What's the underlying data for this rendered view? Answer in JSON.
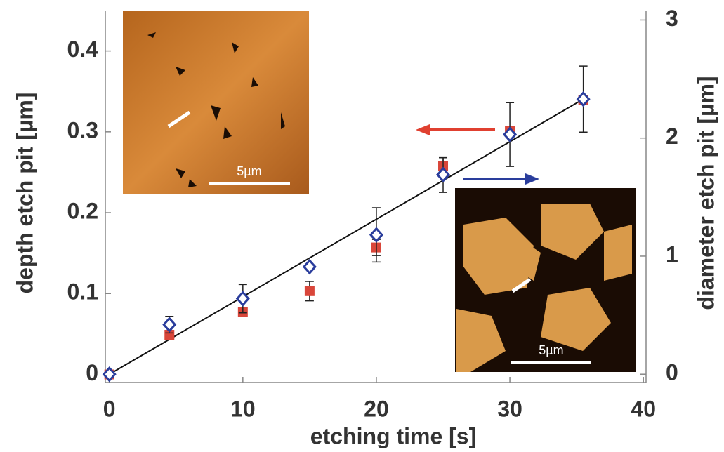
{
  "chart_data": {
    "type": "scatter",
    "xlabel": "etching time [s]",
    "ylabel": "depth etch pit [µm]",
    "y2label": "diameter etch pit [µm]",
    "x": [
      0,
      4.5,
      10,
      15,
      20,
      25,
      30,
      35.5
    ],
    "series": [
      {
        "color": "#d9463a",
        "marker": "square",
        "axis": "y",
        "values": [
          0,
          0.049,
          0.077,
          0.103,
          0.157,
          0.258,
          0.301,
          0.339
        ],
        "errors": [
          0,
          0,
          0.005,
          0.012,
          0.01,
          0.01,
          0,
          0
        ]
      },
      {
        "color": "#2a3d9c",
        "marker": "diamond",
        "axis": "y2",
        "values": [
          0,
          0.42,
          0.64,
          0.91,
          1.18,
          1.69,
          2.03,
          2.33
        ],
        "errors": [
          0,
          0.07,
          0.12,
          0,
          0.23,
          0.15,
          0.27,
          0.28
        ]
      }
    ],
    "fit": {
      "x": [
        0,
        35.5
      ],
      "values": [
        0,
        2.33
      ],
      "axis": "y2",
      "color": "#111111"
    },
    "xlim": [
      -0.3,
      40.2
    ],
    "xticks": [
      0,
      10,
      20,
      30,
      40
    ],
    "ylim": [
      -0.01,
      0.45
    ],
    "yticks": [
      0,
      0.1,
      0.2,
      0.3,
      0.4
    ],
    "y2lim": [
      -0.07,
      3.08
    ],
    "y2ticks": [
      0,
      1,
      2,
      3
    ],
    "insets": [
      {
        "scale_label": "5µm"
      },
      {
        "scale_label": "5µm"
      }
    ]
  }
}
